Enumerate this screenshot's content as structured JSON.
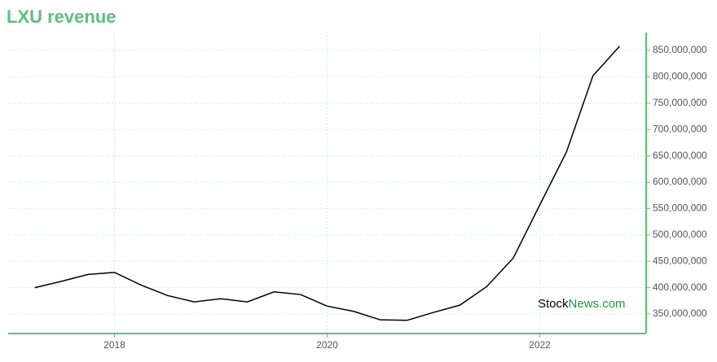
{
  "chart_data": {
    "type": "line",
    "title": "LXU revenue",
    "x": [
      2017.25,
      2017.5,
      2017.75,
      2018.0,
      2018.25,
      2018.5,
      2018.75,
      2019.0,
      2019.25,
      2019.5,
      2019.75,
      2020.0,
      2020.25,
      2020.5,
      2020.75,
      2021.0,
      2021.25,
      2021.5,
      2021.75,
      2022.0,
      2022.25,
      2022.5,
      2022.75
    ],
    "values": [
      400000000,
      412000000,
      425000000,
      429000000,
      405000000,
      385000000,
      373000000,
      379000000,
      373000000,
      392000000,
      387000000,
      365000000,
      355000000,
      339000000,
      338000000,
      353000000,
      367000000,
      402000000,
      456000000,
      557000000,
      657000000,
      802000000,
      858000000
    ],
    "color": "#000000",
    "xlim": [
      2017,
      2023
    ],
    "xticks": [
      2018,
      2020,
      2022
    ],
    "ylim": [
      313000000,
      884000000
    ],
    "yticks": [
      {
        "value": 350000000,
        "label": "350,000,000"
      },
      {
        "value": 400000000,
        "label": "400,000,000"
      },
      {
        "value": 450000000,
        "label": "450,000,000"
      },
      {
        "value": 500000000,
        "label": "500,000,000"
      },
      {
        "value": 550000000,
        "label": "550,000,000"
      },
      {
        "value": 600000000,
        "label": "600,000,000"
      },
      {
        "value": 650000000,
        "label": "650,000,000"
      },
      {
        "value": 700000000,
        "label": "700,000,000"
      },
      {
        "value": 750000000,
        "label": "750,000,000"
      },
      {
        "value": 800000000,
        "label": "800,000,000"
      },
      {
        "value": 850000000,
        "label": "850,000,000"
      }
    ],
    "grid": true,
    "watermark": {
      "first": "Stock",
      "second": "News.com"
    }
  }
}
